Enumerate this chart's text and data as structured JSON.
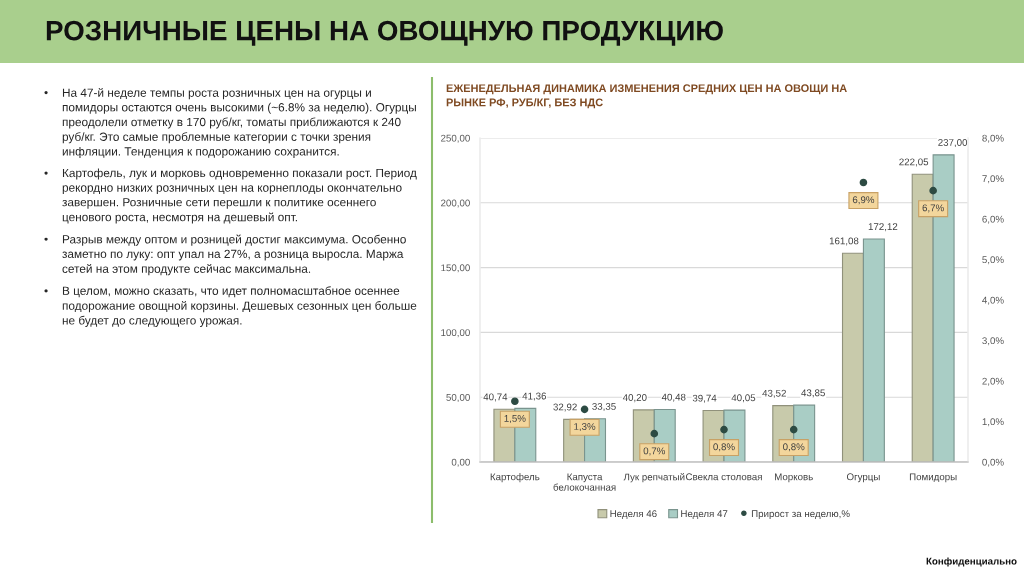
{
  "chart_data": {
    "type": "bar",
    "title": "РОЗНИЧНЫЕ ЦЕНЫ НА ОВОЩНУЮ ПРОДУКЦИЮ",
    "subtitle": "ЕЖЕНЕДЕЛЬНАЯ ДИНАМИКА ИЗМЕНЕНИЯ СРЕДНИХ ЦЕН НА ОВОЩИ НА\nРЫНКЕ РФ, РУБ/КГ, БЕЗ НДС",
    "categories": [
      "Картофель",
      "Капуста\nбелокочанная",
      "Лук репчатый",
      "Свекла столовая",
      "Морковь",
      "Огурцы",
      "Помидоры"
    ],
    "series": [
      {
        "name": "Неделя 46",
        "color": "#c8caab",
        "values": [
          40.74,
          32.92,
          40.2,
          39.74,
          43.52,
          161.08,
          222.05
        ],
        "value_labels": [
          "40,74",
          "32,92",
          "40,20",
          "39,74",
          "43,52",
          "161,08",
          "222,05"
        ]
      },
      {
        "name": "Неделя 47",
        "color": "#a9cdc5",
        "values": [
          41.36,
          33.35,
          40.48,
          40.05,
          43.85,
          172.12,
          237.0
        ],
        "value_labels": [
          "41,36",
          "33,35",
          "40,48",
          "40,05",
          "43,85",
          "172,12",
          "237,00"
        ]
      },
      {
        "name": "Прирост за неделю,%",
        "type": "scatter",
        "axis": "y2",
        "color": "#2d4b43",
        "values": [
          1.5,
          1.3,
          0.7,
          0.8,
          0.8,
          6.9,
          6.7
        ],
        "value_labels": [
          "1,5%",
          "1,3%",
          "0,7%",
          "0,8%",
          "0,8%",
          "6,9%",
          "6,7%"
        ]
      }
    ],
    "ylim": [
      0,
      250
    ],
    "yticks": [
      {
        "value": 0,
        "label": "0,00"
      },
      {
        "value": 50,
        "label": "50,00"
      },
      {
        "value": 100,
        "label": "100,00"
      },
      {
        "value": 150,
        "label": "150,00"
      },
      {
        "value": 200,
        "label": "200,00"
      },
      {
        "value": 250,
        "label": "250,00"
      }
    ],
    "y2lim": [
      0,
      8
    ],
    "y2ticks": [
      {
        "value": 0,
        "label": "0,0%"
      },
      {
        "value": 1,
        "label": "1,0%"
      },
      {
        "value": 2,
        "label": "2,0%"
      },
      {
        "value": 3,
        "label": "3,0%"
      },
      {
        "value": 4,
        "label": "4,0%"
      },
      {
        "value": 5,
        "label": "5,0%"
      },
      {
        "value": 6,
        "label": "6,0%"
      },
      {
        "value": 7,
        "label": "7,0%"
      },
      {
        "value": 8,
        "label": "8,0%"
      }
    ],
    "grid": "y",
    "legend": "bottom",
    "marker": "circle",
    "annotations": [
      "• На 47-й неделе темпы роста розничных цен на огурцы и\nпомидоры остаются очень высокими (~6.8% за неделю). Огурцы\nпреодолели отметку в 170 руб/кг, томаты приближаются к 240\nруб/кг. Это самые проблемные категории с точки зрения\nинфляции. Тенденция к подорожанию сохранится.",
      "• Картофель, лук и морковь одновременно показали рост. Период\nрекордно низких розничных цен на корнеплоды окончательно\nзавершен. Розничные сети перешли к политике осеннего\nценового роста, несмотря на дешевый опт.",
      "• Разрыв между оптом и розницей достиг максимума. Особенно\nзаметно по луку: опт упал на 27%, а розница выросла. Маржа\nсетей на этом продукте сейчас максимальна.",
      "• В целом, можно сказать, что идет полномасштабное осеннее\nподорожание овощной корзины. Дешевых сезонных цен больше\nне будет до следующего урожая.",
      "Конфиденциально"
    ]
  }
}
